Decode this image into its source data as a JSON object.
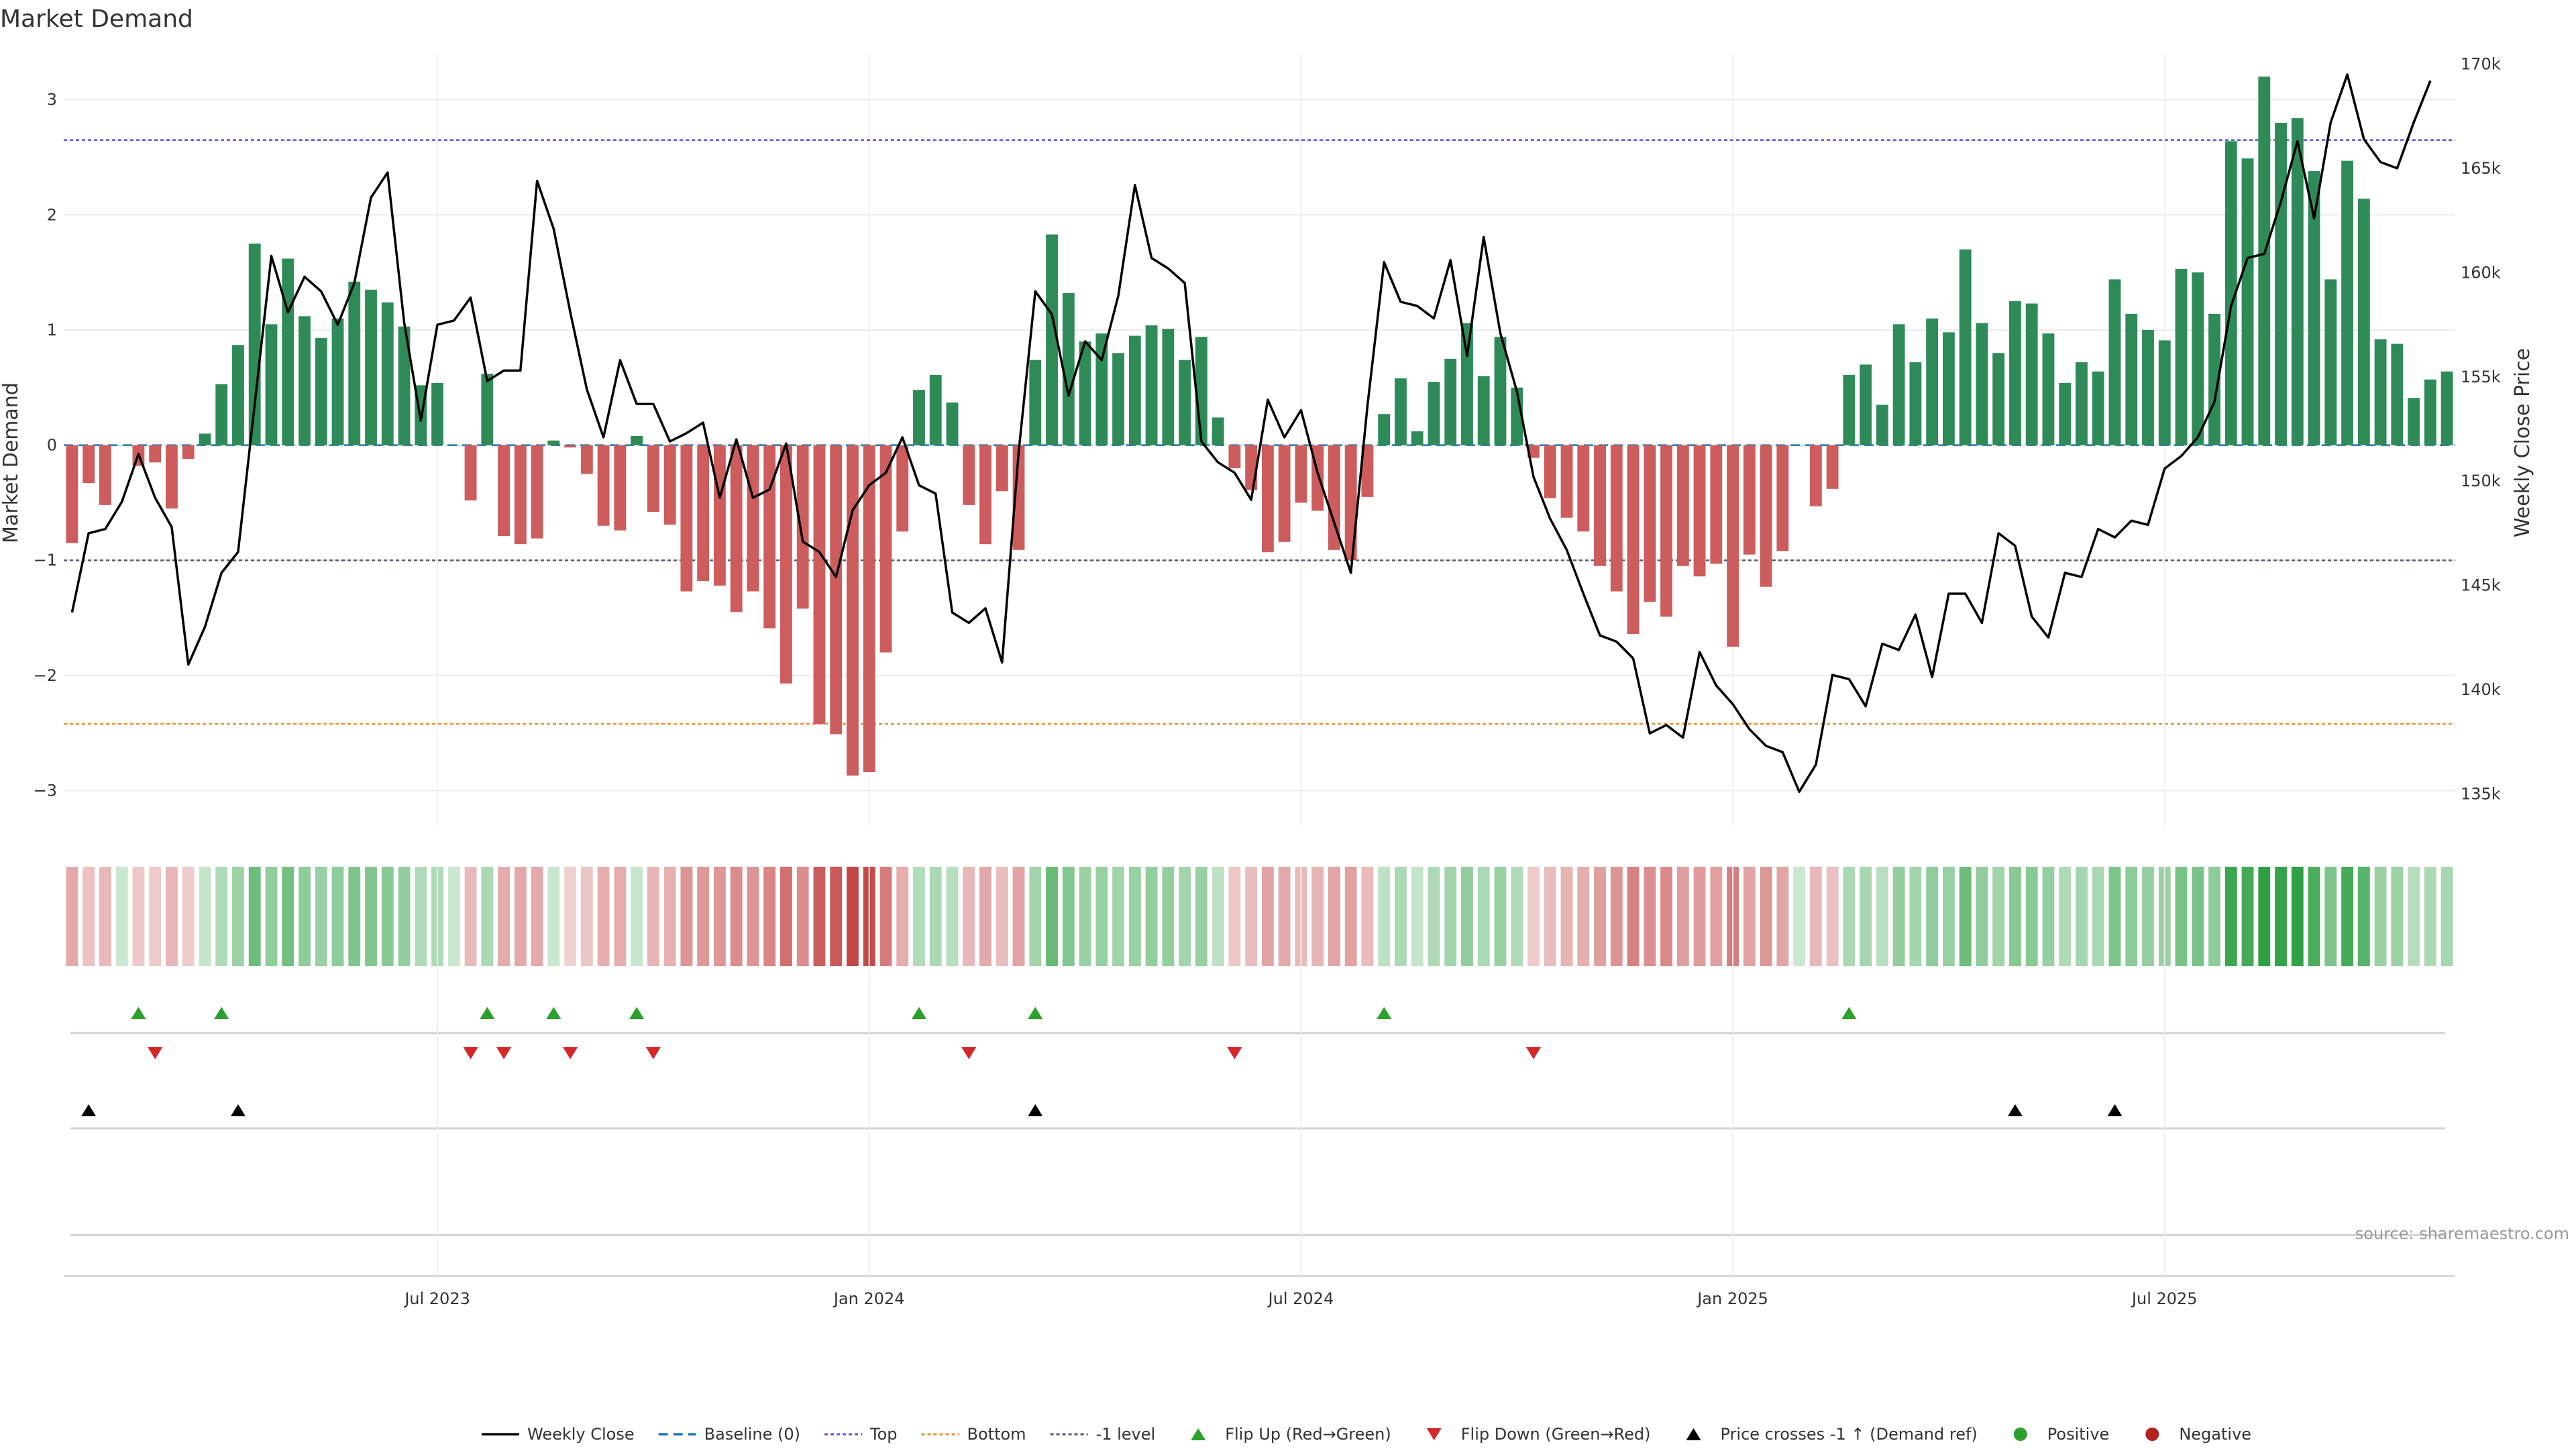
{
  "chart_data": {
    "type": "bar+line",
    "title": "Market Demand",
    "ylabel_left": "Market Demand",
    "ylabel_right": "Weekly Close Price",
    "ylim_left": [
      -3.3,
      3.4
    ],
    "ylim_right": [
      133500,
      170500
    ],
    "yticks_left": [
      3,
      2,
      1,
      0,
      -1,
      -2,
      -3
    ],
    "yticks_right": [
      170000,
      165000,
      160000,
      155000,
      150000,
      145000,
      140000,
      135000
    ],
    "yticks_right_labels": [
      "170k",
      "165k",
      "160k",
      "155k",
      "150k",
      "145k",
      "140k",
      "135k"
    ],
    "x_date_start": "2023-01-20",
    "x_ticks": [
      {
        "label": "Jul 2023",
        "index": 22
      },
      {
        "label": "Jan 2024",
        "index": 48
      },
      {
        "label": "Jul 2024",
        "index": 74
      },
      {
        "label": "Jan 2025",
        "index": 100
      },
      {
        "label": "Jul 2025",
        "index": 126
      }
    ],
    "reference_lines": {
      "top": 2.65,
      "bottom": -2.42,
      "minus_one": -1,
      "baseline": 0
    },
    "demand": [
      -0.85,
      -0.33,
      -0.52,
      0.0,
      -0.18,
      -0.15,
      -0.55,
      -0.12,
      0.1,
      0.53,
      0.87,
      1.75,
      1.05,
      1.62,
      1.12,
      0.93,
      1.1,
      1.42,
      1.35,
      1.24,
      1.03,
      0.52,
      0.54,
      0.0,
      -0.48,
      0.62,
      -0.79,
      -0.86,
      -0.81,
      0.04,
      -0.02,
      -0.25,
      -0.7,
      -0.74,
      0.08,
      -0.58,
      -0.69,
      -1.27,
      -1.18,
      -1.22,
      -1.45,
      -1.27,
      -1.59,
      -2.07,
      -1.42,
      -2.42,
      -2.51,
      -2.87,
      -2.84,
      -1.8,
      -0.75,
      0.48,
      0.61,
      0.37,
      -0.52,
      -0.86,
      -0.4,
      -0.91,
      0.74,
      1.83,
      1.32,
      0.9,
      0.97,
      0.8,
      0.95,
      1.04,
      1.01,
      0.74,
      0.94,
      0.24,
      -0.2,
      -0.39,
      -0.93,
      -0.84,
      -0.5,
      -0.57,
      -0.91,
      -1.0,
      -0.45,
      0.27,
      0.58,
      0.12,
      0.55,
      0.75,
      1.06,
      0.6,
      0.94,
      0.5,
      -0.11,
      -0.46,
      -0.63,
      -0.75,
      -1.05,
      -1.27,
      -1.64,
      -1.36,
      -1.49,
      -1.05,
      -1.14,
      -1.03,
      -1.75,
      -0.95,
      -1.23,
      -0.92,
      0.0,
      -0.53,
      -0.38,
      0.61,
      0.7,
      0.35,
      1.05,
      0.72,
      1.1,
      0.98,
      1.7,
      1.06,
      0.8,
      1.25,
      1.23,
      0.97,
      0.54,
      0.72,
      0.64,
      1.44,
      1.14,
      1.0,
      0.91,
      1.53,
      1.5,
      1.14,
      2.64,
      2.49,
      3.2,
      2.8,
      2.84,
      2.38,
      1.44,
      2.47,
      2.14,
      0.92,
      0.88,
      0.41,
      0.57,
      0.64
    ],
    "weekly_close": [
      143700,
      147500,
      147700,
      149000,
      151300,
      149200,
      147800,
      141200,
      143000,
      145600,
      146600,
      153700,
      160800,
      158100,
      159800,
      159100,
      157500,
      159500,
      163600,
      164800,
      157600,
      152900,
      157500,
      157700,
      158800,
      154800,
      155300,
      155300,
      164400,
      162100,
      158100,
      154400,
      152100,
      155800,
      153700,
      153700,
      151900,
      152300,
      152800,
      149200,
      152000,
      149200,
      149600,
      151800,
      147100,
      146600,
      145400,
      148600,
      149800,
      150400,
      152100,
      149800,
      149400,
      143700,
      143200,
      143900,
      141300,
      151400,
      159100,
      158000,
      154100,
      156700,
      155800,
      158900,
      164200,
      160700,
      160200,
      159500,
      151900,
      150900,
      150400,
      149100,
      153900,
      152100,
      153400,
      150400,
      148000,
      145600,
      153600,
      160500,
      158600,
      158400,
      157800,
      160600,
      156000,
      161700,
      157100,
      154300,
      150200,
      148200,
      146700,
      144600,
      142600,
      142300,
      141500,
      137900,
      138300,
      137700,
      141800,
      140200,
      139300,
      138100,
      137300,
      137000,
      135100,
      136400,
      140700,
      140500,
      139200,
      142200,
      141900,
      143600,
      140600,
      144600,
      144600,
      143200,
      147500,
      146900,
      143500,
      142500,
      145600,
      145400,
      147700,
      147300,
      148100,
      147900,
      150600,
      151200,
      152100,
      153800,
      158400,
      160700,
      160900,
      163400,
      166300,
      162600,
      167200,
      169500,
      166400,
      165300,
      165000,
      167200,
      169200
    ],
    "flip_up_indices": [
      4,
      9,
      25,
      29,
      34,
      51,
      58,
      79,
      107
    ],
    "flip_down_indices": [
      5,
      24,
      26,
      30,
      35,
      54,
      70,
      88
    ],
    "price_cross_indices": [
      1,
      10,
      58,
      117,
      123
    ],
    "positive_color": "#2e8b57",
    "negative_color": "#cd5c5c",
    "line_color": "#000000",
    "top_color": "#5a5ad6",
    "bottom_color": "#e8902a",
    "minus_one_color": "#555577",
    "baseline_color": "#1f77b4",
    "flip_up_color": "#2ca02c",
    "flip_down_color": "#d62728",
    "cross_color": "#000000",
    "source": "source: sharemaestro.com",
    "legend": [
      {
        "label": "Weekly Close",
        "kind": "line",
        "color": "#000000"
      },
      {
        "label": "Baseline (0)",
        "kind": "dash",
        "color": "#1f77b4"
      },
      {
        "label": "Top",
        "kind": "dot",
        "color": "#5a5ad6"
      },
      {
        "label": "Bottom",
        "kind": "dot",
        "color": "#e8902a"
      },
      {
        "label": "-1 level",
        "kind": "dot",
        "color": "#555577"
      },
      {
        "label": "Flip Up (Red→Green)",
        "kind": "tri-up",
        "color": "#2ca02c"
      },
      {
        "label": "Flip Down (Green→Red)",
        "kind": "tri-down",
        "color": "#d62728"
      },
      {
        "label": "Price crosses -1 ↑ (Demand ref)",
        "kind": "tri-up",
        "color": "#000000"
      },
      {
        "label": "Positive",
        "kind": "circle",
        "color": "#2ca02c"
      },
      {
        "label": "Negative",
        "kind": "circle",
        "color": "#b22222"
      }
    ]
  }
}
